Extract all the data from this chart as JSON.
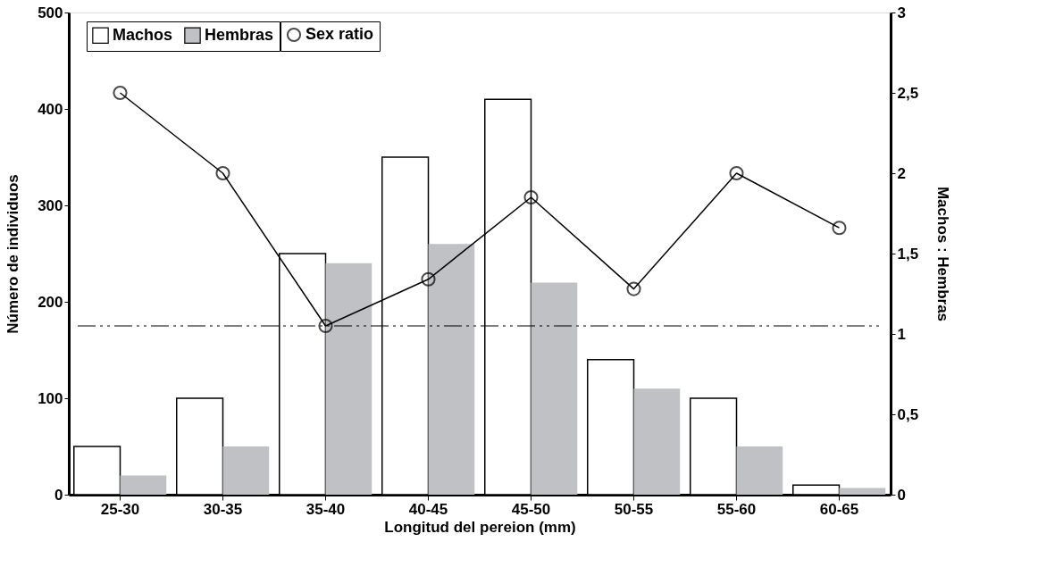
{
  "chart_data": {
    "type": "bar",
    "xlabel": "Longitud del pereion (mm)",
    "ylabel": "Número de  individuos",
    "y2label": "Machos : Hembras",
    "categories": [
      "25-30",
      "30-35",
      "35-40",
      "40-45",
      "45-50",
      "50-55",
      "55-60",
      "60-65"
    ],
    "series": [
      {
        "name": "Machos",
        "color": "#ffffff",
        "values": [
          50,
          100,
          250,
          350,
          410,
          140,
          100,
          10
        ]
      },
      {
        "name": "Hembras",
        "color": "#c0c1c4",
        "values": [
          20,
          50,
          240,
          260,
          220,
          110,
          50,
          7
        ]
      },
      {
        "name": "Sex ratio",
        "type": "line",
        "axis": "y2",
        "color": "#000000",
        "marker": "circle",
        "values": [
          2.5,
          2.0,
          1.05,
          1.34,
          1.85,
          1.28,
          2.0,
          1.66
        ]
      }
    ],
    "ylim": [
      0,
      500
    ],
    "yticks": [
      0,
      100,
      200,
      300,
      400,
      500
    ],
    "y2lim": [
      0,
      3
    ],
    "y2ticks": [
      0,
      {
        "value": 0.5,
        "label": "0,5"
      },
      1,
      {
        "value": 1.5,
        "label": "1,5"
      },
      2,
      {
        "value": 2.5,
        "label": "2,5"
      },
      3
    ],
    "ref_lines": [
      {
        "axis": "y2",
        "value": 1.05,
        "line_style": "dashdotdot",
        "color": "#000000"
      }
    ],
    "grid": false,
    "legend": "top left"
  }
}
